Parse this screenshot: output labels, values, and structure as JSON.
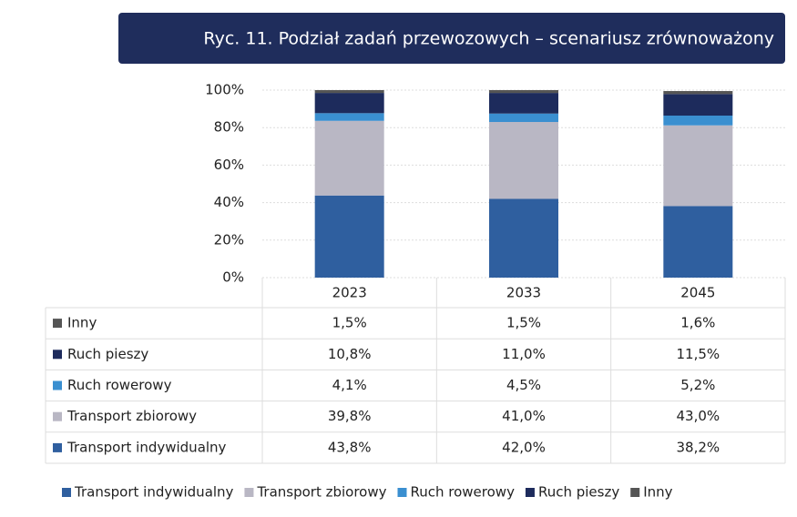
{
  "chart_data": {
    "type": "stacked_bar",
    "title": "Ryc. 11. Podział zadań przewozowych – scenariusz zrównoważony",
    "categories": [
      "2023",
      "2033",
      "2045"
    ],
    "series": [
      {
        "name": "Transport indywidualny",
        "color": "#2f5f9f",
        "values": [
          43.8,
          42.0,
          38.2
        ],
        "value_labels": [
          "43,8%",
          "42,0%",
          "38,2%"
        ]
      },
      {
        "name": "Transport zbiorowy",
        "color": "#b9b7c4",
        "values": [
          39.8,
          41.0,
          43.0
        ],
        "value_labels": [
          "39,8%",
          "41,0%",
          "43,0%"
        ]
      },
      {
        "name": "Ruch rowerowy",
        "color": "#3a8fd0",
        "values": [
          4.1,
          4.5,
          5.2
        ],
        "value_labels": [
          "4,1%",
          "4,5%",
          "5,2%"
        ]
      },
      {
        "name": "Ruch pieszy",
        "color": "#1d2b5c",
        "values": [
          10.8,
          11.0,
          11.5
        ],
        "value_labels": [
          "10,8%",
          "11,0%",
          "11,5%"
        ]
      },
      {
        "name": "Inny",
        "color": "#555555",
        "values": [
          1.5,
          1.5,
          1.6
        ],
        "value_labels": [
          "1,5%",
          "1,5%",
          "1,6%"
        ]
      }
    ],
    "ylim": [
      0,
      100
    ],
    "yticks": [
      {
        "value": 0,
        "label": "0%"
      },
      {
        "value": 20,
        "label": "20%"
      },
      {
        "value": 40,
        "label": "40%"
      },
      {
        "value": 60,
        "label": "60%"
      },
      {
        "value": 80,
        "label": "80%"
      },
      {
        "value": 100,
        "label": "100%"
      }
    ],
    "grid": true,
    "legend": "bottom"
  }
}
